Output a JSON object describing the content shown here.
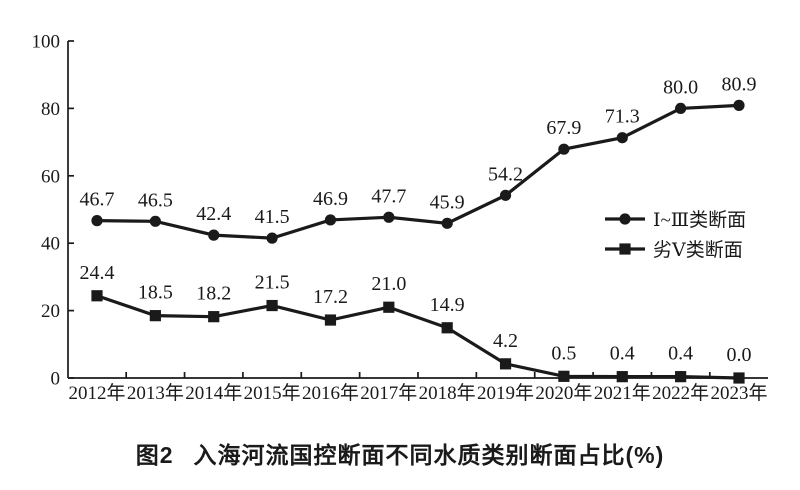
{
  "chart_data": {
    "type": "line",
    "title": "图2  入海河流国控断面不同水质类别断面占比(%)",
    "categories": [
      "2012年",
      "2013年",
      "2014年",
      "2015年",
      "2016年",
      "2017年",
      "2018年",
      "2019年",
      "2020年",
      "2021年",
      "2022年",
      "2023年"
    ],
    "series": [
      {
        "name": "Ⅰ~Ⅲ类断面",
        "marker": "circle",
        "values": [
          46.7,
          46.5,
          42.4,
          41.5,
          46.9,
          47.7,
          45.9,
          54.2,
          67.9,
          71.3,
          80.0,
          80.9
        ]
      },
      {
        "name": "劣Ⅴ类断面",
        "marker": "square",
        "values": [
          24.4,
          18.5,
          18.2,
          21.5,
          17.2,
          21.0,
          14.9,
          4.2,
          0.5,
          0.4,
          0.4,
          0.0
        ]
      }
    ],
    "xlabel": "",
    "ylabel": "",
    "ylim": [
      0,
      100
    ],
    "yticks": [
      0,
      20,
      40,
      60,
      80,
      100
    ],
    "grid": false,
    "legend_position": "middle-right",
    "data_labels": true,
    "line_color": "#1a1a1a",
    "background_color": "#ffffff"
  },
  "caption": {
    "label": "图2",
    "text": "入海河流国控断面不同水质类别断面占比(%)"
  }
}
